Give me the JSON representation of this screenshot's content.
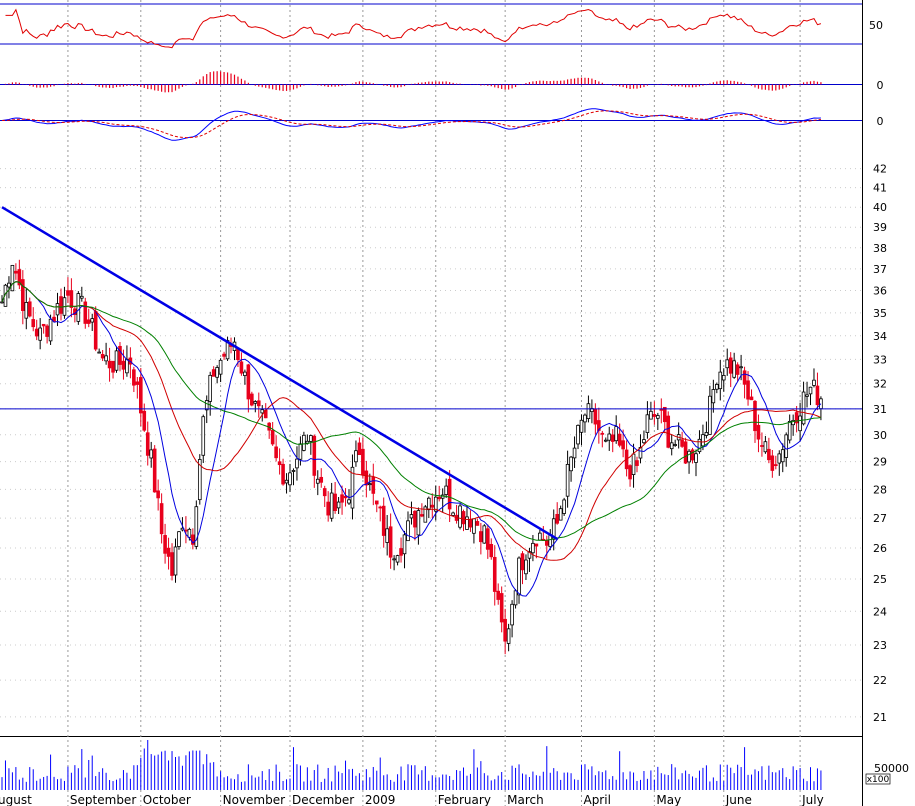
{
  "chart_data": {
    "type": "candlestick",
    "colors": {
      "up_candle": "#000000",
      "down_candle": "#e8001c",
      "ma_fast": "#0000e0",
      "ma_mid": "#d00000",
      "ma_slow": "#008000",
      "trendline": "#0000e6",
      "rsi_line": "#e00000",
      "macd_line": "#0000ff",
      "signal_line": "#e00000",
      "volume": "#0000ff",
      "grid": "#999999"
    },
    "price_axis": {
      "range": [
        20.5,
        43
      ],
      "tick_labels": [
        "21",
        "22",
        "23",
        "24",
        "25",
        "26",
        "27",
        "28",
        "29",
        "30",
        "31",
        "32",
        "33",
        "34",
        "35",
        "36",
        "37",
        "38",
        "39",
        "40",
        "41",
        "42"
      ]
    },
    "rsi_panel": {
      "tick_label": "50",
      "range": [
        0,
        100
      ]
    },
    "histogram_panel": {
      "tick_label": "0"
    },
    "macd_panel": {
      "tick_label": "0"
    },
    "volume_panel": {
      "tick_label": "50000",
      "multiplier_label": "x100"
    },
    "months": [
      {
        "label": "ugust",
        "day": 0
      },
      {
        "label": "September",
        "day": 19
      },
      {
        "label": "October",
        "day": 40
      },
      {
        "label": "November",
        "day": 63
      },
      {
        "label": "December",
        "day": 83
      },
      {
        "label": "2009",
        "day": 104
      },
      {
        "label": "February",
        "day": 125
      },
      {
        "label": "March",
        "day": 145
      },
      {
        "label": "April",
        "day": 167
      },
      {
        "label": "May",
        "day": 188
      },
      {
        "label": "June",
        "day": 208
      },
      {
        "label": "July",
        "day": 230
      }
    ],
    "trendline": {
      "start": {
        "day": 0,
        "price": 40.0
      },
      "end": {
        "day": 160,
        "price": 26.3
      }
    },
    "horizontal_level": 31.0,
    "anchors": [
      [
        0,
        35.5
      ],
      [
        3,
        37.5
      ],
      [
        7,
        35.0
      ],
      [
        11,
        34.0
      ],
      [
        16,
        35.2
      ],
      [
        19,
        35.8
      ],
      [
        24,
        35.0
      ],
      [
        29,
        33.0
      ],
      [
        33,
        32.8
      ],
      [
        37,
        33.0
      ],
      [
        40,
        31.0
      ],
      [
        43,
        29.0
      ],
      [
        46,
        26.5
      ],
      [
        49,
        25.2
      ],
      [
        52,
        27.0
      ],
      [
        55,
        26.5
      ],
      [
        58,
        30.5
      ],
      [
        61,
        32.5
      ],
      [
        64,
        33.2
      ],
      [
        67,
        33.8
      ],
      [
        70,
        32.2
      ],
      [
        73,
        31.0
      ],
      [
        76,
        30.2
      ],
      [
        79,
        29.0
      ],
      [
        82,
        28.5
      ],
      [
        85,
        29.2
      ],
      [
        88,
        30.0
      ],
      [
        91,
        28.5
      ],
      [
        94,
        27.5
      ],
      [
        97,
        27.2
      ],
      [
        100,
        28.0
      ],
      [
        103,
        29.5
      ],
      [
        106,
        28.0
      ],
      [
        109,
        27.0
      ],
      [
        112,
        26.0
      ],
      [
        115,
        26.2
      ],
      [
        118,
        26.8
      ],
      [
        121,
        27.5
      ],
      [
        124,
        27.8
      ],
      [
        127,
        28.0
      ],
      [
        130,
        27.5
      ],
      [
        133,
        27.2
      ],
      [
        136,
        27.0
      ],
      [
        139,
        26.5
      ],
      [
        141,
        25.5
      ],
      [
        143,
        24.0
      ],
      [
        145,
        23.0
      ],
      [
        148,
        25.0
      ],
      [
        151,
        26.0
      ],
      [
        154,
        26.5
      ],
      [
        157,
        26.2
      ],
      [
        160,
        26.8
      ],
      [
        162,
        28.0
      ],
      [
        165,
        29.5
      ],
      [
        168,
        30.8
      ],
      [
        171,
        30.5
      ],
      [
        174,
        29.5
      ],
      [
        177,
        29.8
      ],
      [
        180,
        28.8
      ],
      [
        183,
        28.8
      ],
      [
        186,
        30.5
      ],
      [
        189,
        30.8
      ],
      [
        192,
        30.0
      ],
      [
        195,
        29.5
      ],
      [
        198,
        29.2
      ],
      [
        201,
        29.8
      ],
      [
        204,
        31.0
      ],
      [
        206,
        32.5
      ],
      [
        209,
        32.8
      ],
      [
        212,
        32.6
      ],
      [
        215,
        31.5
      ],
      [
        218,
        30.0
      ],
      [
        221,
        29.0
      ],
      [
        224,
        29.3
      ],
      [
        227,
        30.5
      ],
      [
        230,
        31.2
      ],
      [
        233,
        31.8
      ],
      [
        236,
        31.5
      ]
    ]
  }
}
